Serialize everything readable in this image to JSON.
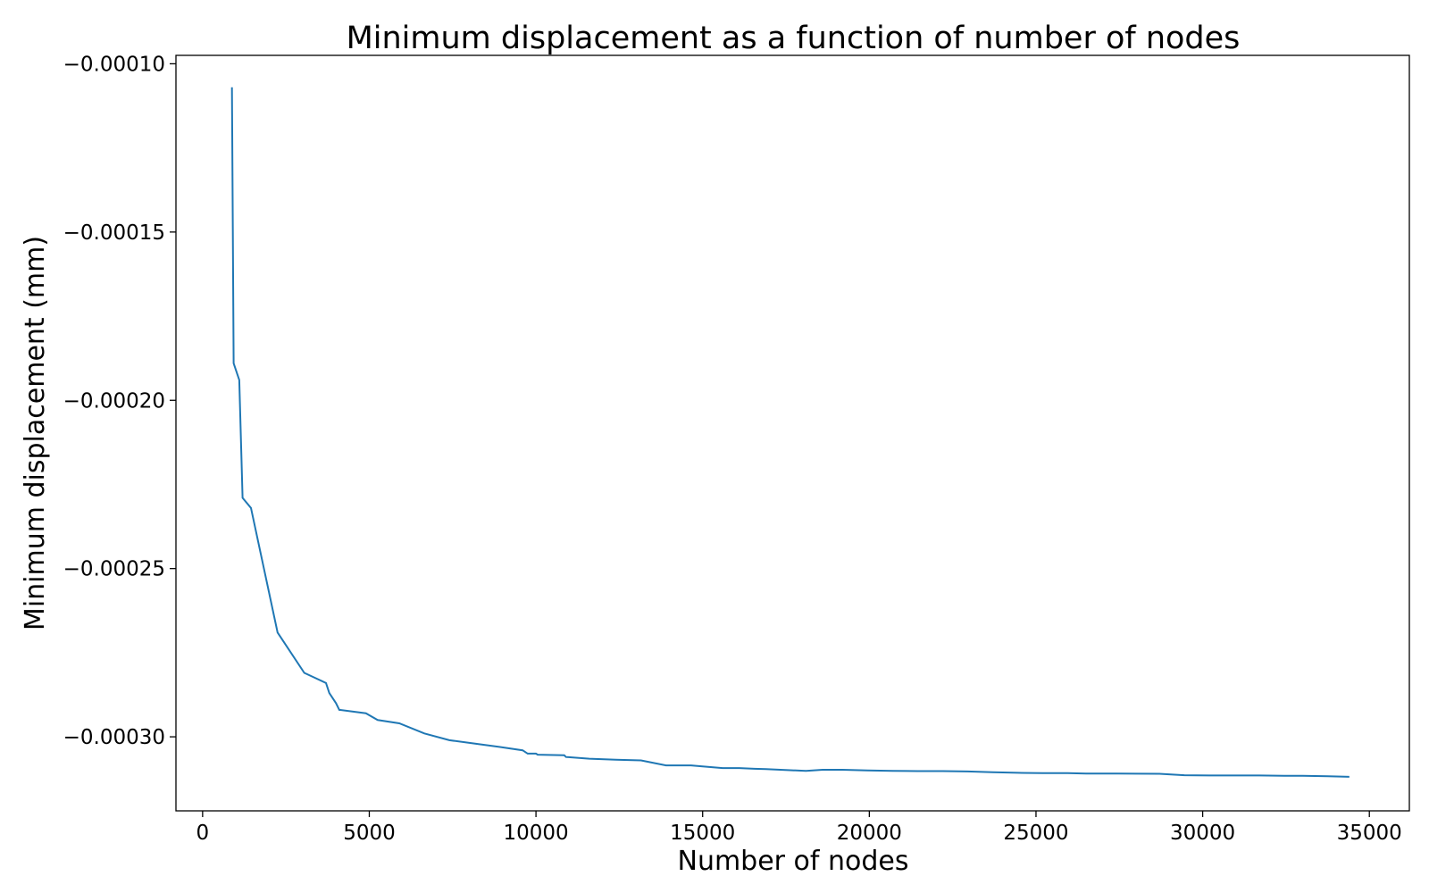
{
  "chart_data": {
    "type": "line",
    "title": "Minimum displacement as a function of number of nodes",
    "xlabel": "Number of nodes",
    "ylabel": "Minimum displacement (mm)",
    "xlim": [
      -800,
      36200
    ],
    "ylim": [
      -0.000322,
      -9.75e-05
    ],
    "x_ticks": [
      0,
      5000,
      10000,
      15000,
      20000,
      25000,
      30000,
      35000
    ],
    "x_tick_labels": [
      "0",
      "5000",
      "10000",
      "15000",
      "20000",
      "25000",
      "30000",
      "35000"
    ],
    "y_ticks": [
      -0.0001,
      -0.00015,
      -0.0002,
      -0.00025,
      -0.0003
    ],
    "y_tick_labels": [
      "−0.00010",
      "−0.00015",
      "−0.00020",
      "−0.00025",
      "−0.00030"
    ],
    "grid": false,
    "legend": "none",
    "colors": {
      "line": "#1f77b4",
      "axes": "#000000"
    },
    "series": [
      {
        "x": [
          880,
          930,
          1100,
          1200,
          1450,
          2250,
          3050,
          3700,
          3800,
          4000,
          4100,
          4900,
          5250,
          5900,
          6650,
          7400,
          8150,
          8900,
          9600,
          9750,
          10000,
          10050,
          10850,
          10900,
          11600,
          12400,
          13150,
          13900,
          14650,
          15000,
          15600,
          16100,
          16550,
          16900,
          17550,
          18100,
          18600,
          19200,
          19950,
          20700,
          21450,
          22200,
          22950,
          23700,
          24450,
          25200,
          25950,
          26500,
          27450,
          28700,
          29450,
          30200,
          30950,
          31700,
          32450,
          33000,
          33750,
          34400
        ],
        "y": [
          -0.000107,
          -0.000189,
          -0.000194,
          -0.000229,
          -0.000232,
          -0.000269,
          -0.000281,
          -0.000284,
          -0.000287,
          -0.00029,
          -0.000292,
          -0.000293,
          -0.000295,
          -0.000296,
          -0.000299,
          -0.000301,
          -0.000302,
          -0.000303,
          -0.000304,
          -0.000305,
          -0.000305,
          -0.0003053,
          -0.0003055,
          -0.000306,
          -0.0003065,
          -0.0003068,
          -0.000307,
          -0.0003085,
          -0.0003085,
          -0.0003088,
          -0.0003093,
          -0.0003093,
          -0.0003095,
          -0.0003096,
          -0.0003099,
          -0.0003101,
          -0.0003098,
          -0.0003098,
          -0.00031,
          -0.0003101,
          -0.0003102,
          -0.0003102,
          -0.0003103,
          -0.0003105,
          -0.0003107,
          -0.0003108,
          -0.0003108,
          -0.0003109,
          -0.0003109,
          -0.000311,
          -0.0003114,
          -0.0003115,
          -0.0003115,
          -0.0003115,
          -0.0003116,
          -0.0003116,
          -0.0003117,
          -0.0003119
        ]
      }
    ]
  }
}
